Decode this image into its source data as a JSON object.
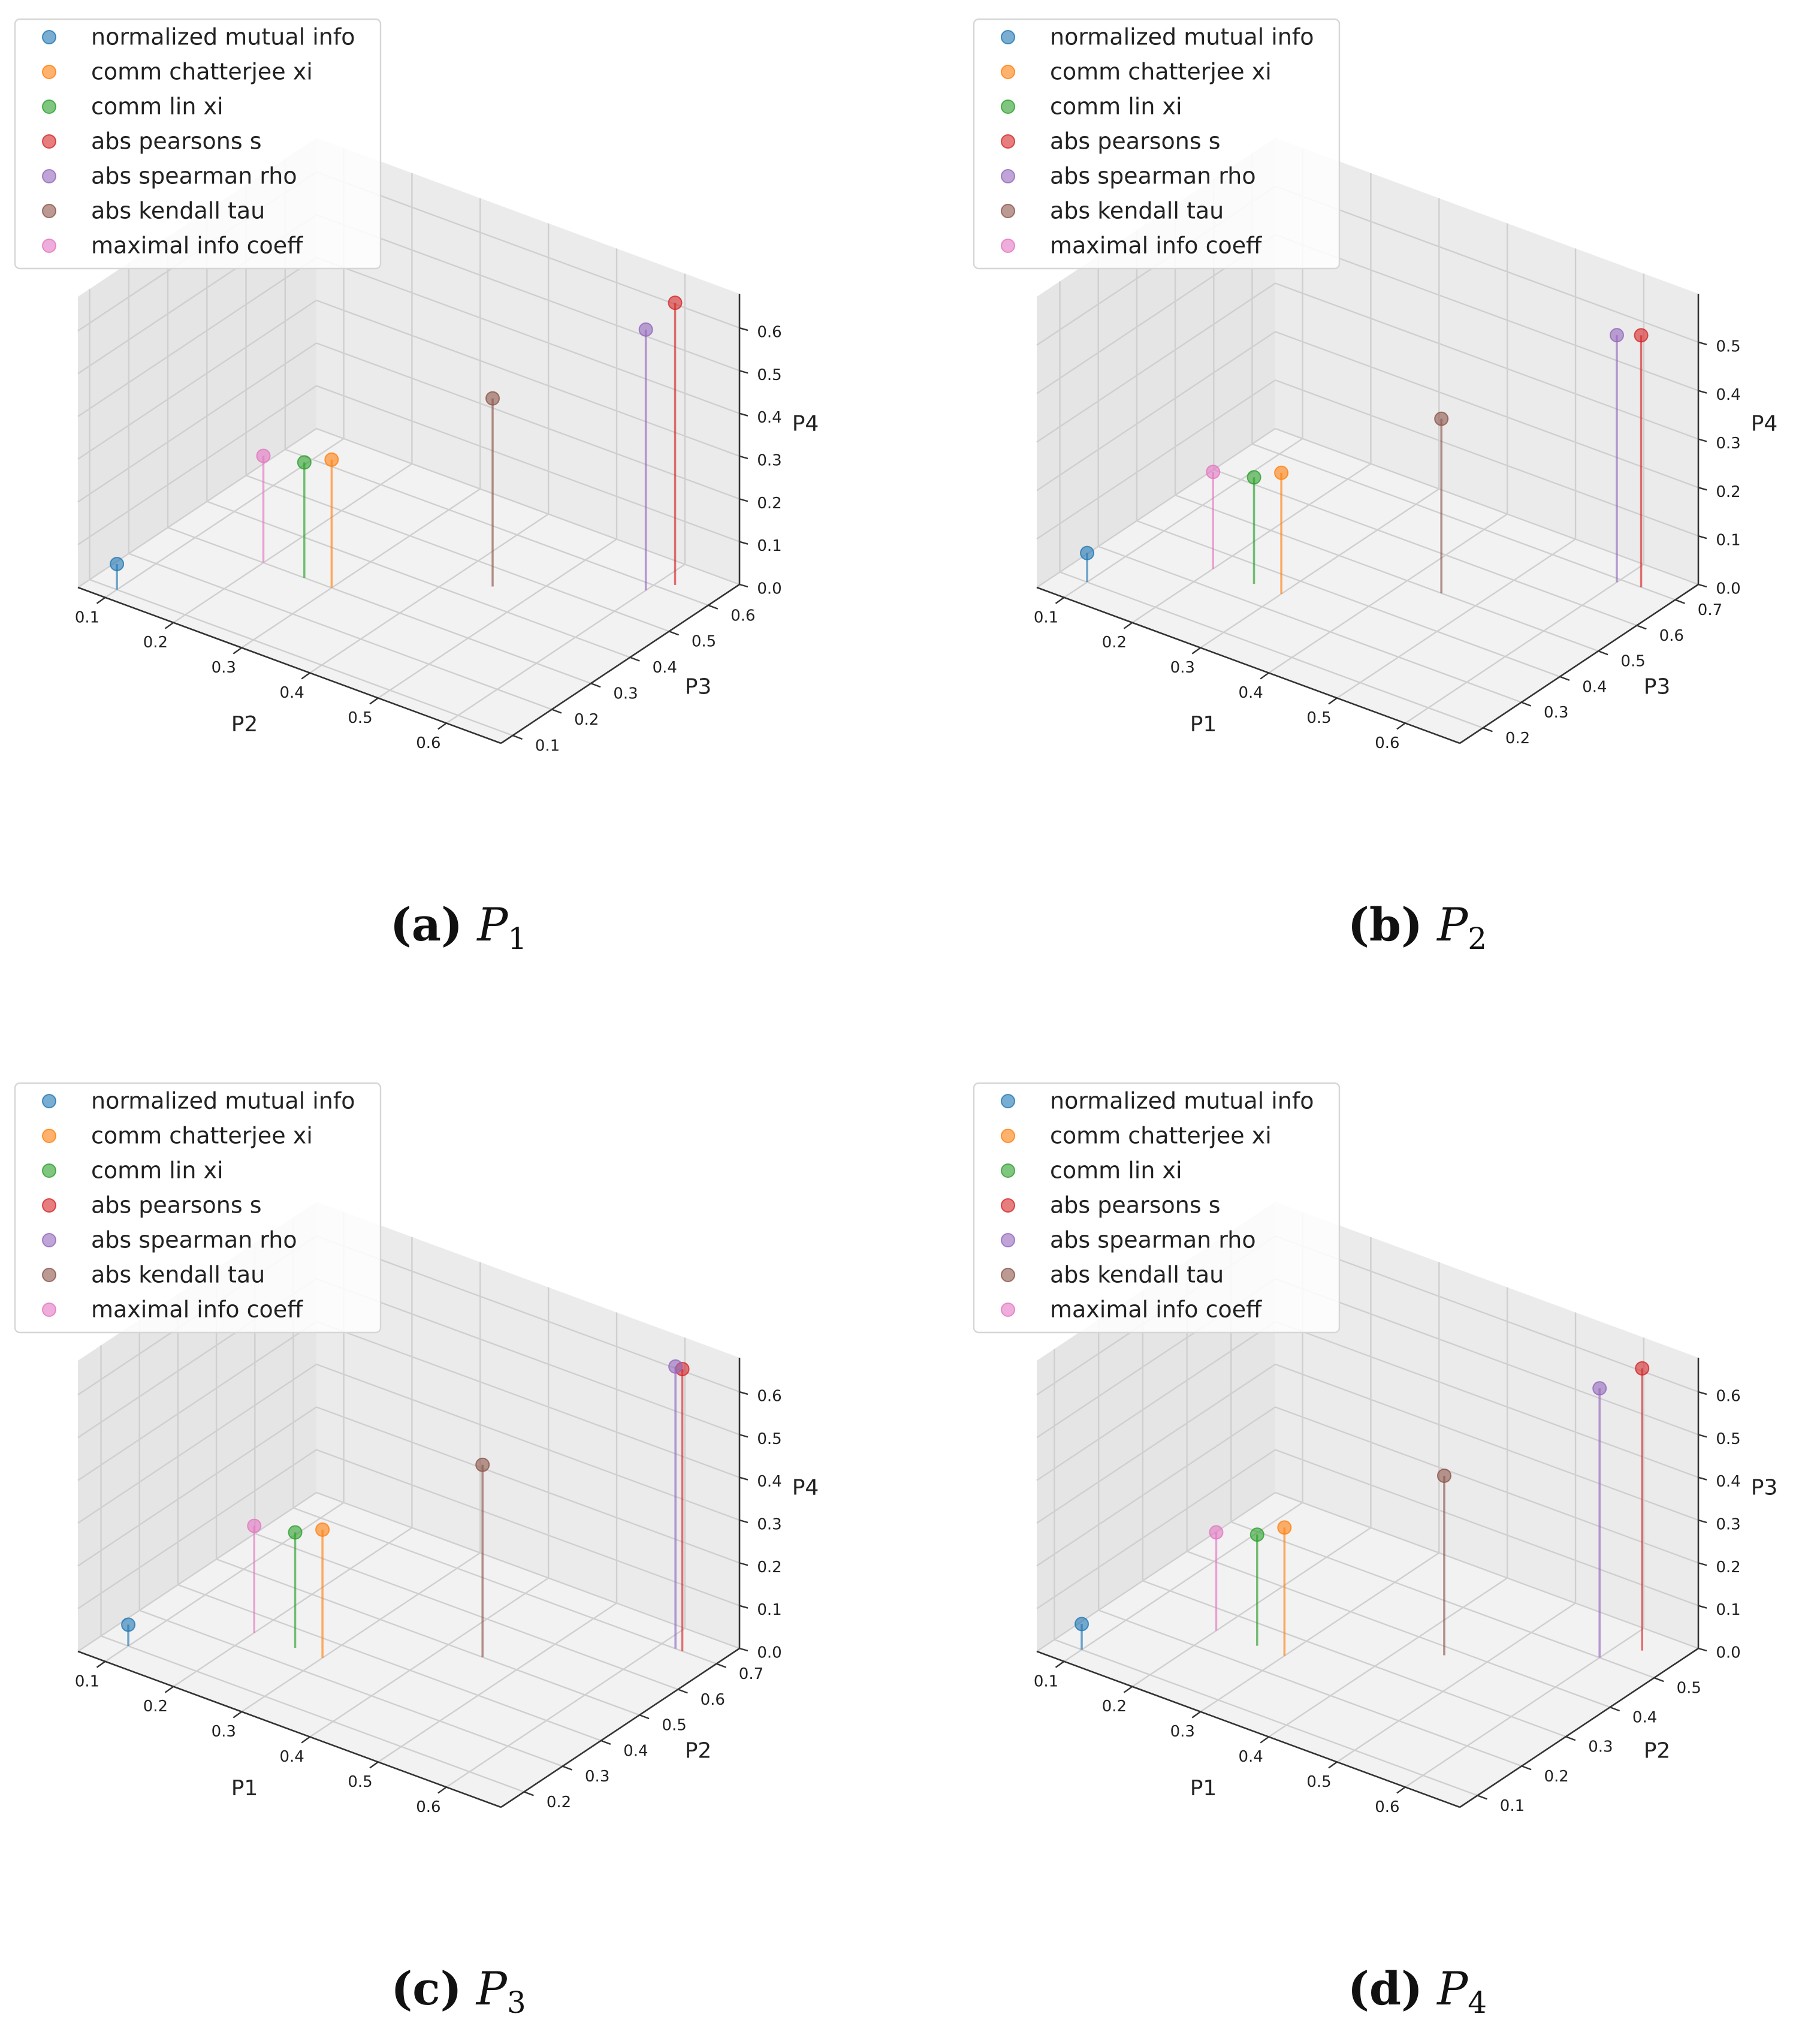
{
  "legend_labels": [
    "normalized mutual info",
    "comm chatterjee xi",
    "comm lin xi",
    "abs pearsons s",
    "abs spearman rho",
    "abs kendall tau",
    "maximal info coeff"
  ],
  "series_colors": [
    "#1f77b4",
    "#ff7f0e",
    "#2ca02c",
    "#d62728",
    "#9467bd",
    "#8c564b",
    "#e377c2"
  ],
  "chart_data": [
    {
      "type": "scatter",
      "subtitle_label": "(a)",
      "subtitle_var": "P",
      "subtitle_sub": "1",
      "xlabel": "P2",
      "ylabel": "P3",
      "zlabel": "P4",
      "xticks": [
        "0.1",
        "0.2",
        "0.3",
        "0.4",
        "0.5",
        "0.6"
      ],
      "yticks": [
        "0.1",
        "0.2",
        "0.3",
        "0.4",
        "0.5",
        "0.6"
      ],
      "zticks": [
        "0.0",
        "0.1",
        "0.2",
        "0.3",
        "0.4",
        "0.5",
        "0.6"
      ],
      "xlim": [
        0.06,
        0.68
      ],
      "ylim": [
        0.07,
        0.68
      ],
      "zlim": [
        0,
        0.68
      ],
      "legend_position": "upper-left",
      "series": [
        {
          "name": "normalized mutual info",
          "x": 0.1,
          "y": 0.1,
          "z": 0.06
        },
        {
          "name": "comm chatterjee xi",
          "x": 0.3,
          "y": 0.3,
          "z": 0.3
        },
        {
          "name": "comm lin xi",
          "x": 0.26,
          "y": 0.3,
          "z": 0.27
        },
        {
          "name": "abs pearsons s",
          "x": 0.62,
          "y": 0.62,
          "z": 0.66
        },
        {
          "name": "abs spearman rho",
          "x": 0.6,
          "y": 0.58,
          "z": 0.61
        },
        {
          "name": "abs kendall tau",
          "x": 0.45,
          "y": 0.45,
          "z": 0.44
        },
        {
          "name": "maximal info coeff",
          "x": 0.2,
          "y": 0.3,
          "z": 0.25
        }
      ]
    },
    {
      "type": "scatter",
      "subtitle_label": "(b)",
      "subtitle_var": "P",
      "subtitle_sub": "2",
      "xlabel": "P1",
      "ylabel": "P3",
      "zlabel": "P4",
      "xticks": [
        "0.1",
        "0.2",
        "0.3",
        "0.4",
        "0.5",
        "0.6"
      ],
      "yticks": [
        "0.2",
        "0.3",
        "0.4",
        "0.5",
        "0.6",
        "0.7"
      ],
      "zticks": [
        "0.0",
        "0.1",
        "0.2",
        "0.3",
        "0.4",
        "0.5"
      ],
      "xlim": [
        0.06,
        0.68
      ],
      "ylim": [
        0.14,
        0.76
      ],
      "zlim": [
        0,
        0.6
      ],
      "legend_position": "upper-left",
      "series": [
        {
          "name": "normalized mutual info",
          "x": 0.1,
          "y": 0.2,
          "z": 0.06
        },
        {
          "name": "comm chatterjee xi",
          "x": 0.3,
          "y": 0.35,
          "z": 0.25
        },
        {
          "name": "comm lin xi",
          "x": 0.26,
          "y": 0.35,
          "z": 0.22
        },
        {
          "name": "abs pearsons s",
          "x": 0.63,
          "y": 0.7,
          "z": 0.52
        },
        {
          "name": "abs spearman rho",
          "x": 0.6,
          "y": 0.69,
          "z": 0.51
        },
        {
          "name": "abs kendall tau",
          "x": 0.45,
          "y": 0.5,
          "z": 0.36
        },
        {
          "name": "maximal info coeff",
          "x": 0.2,
          "y": 0.35,
          "z": 0.2
        }
      ]
    },
    {
      "type": "scatter",
      "subtitle_label": "(c)",
      "subtitle_var": "P",
      "subtitle_sub": "3",
      "xlabel": "P1",
      "ylabel": "P2",
      "zlabel": "P4",
      "xticks": [
        "0.1",
        "0.2",
        "0.3",
        "0.4",
        "0.5",
        "0.6"
      ],
      "yticks": [
        "0.2",
        "0.3",
        "0.4",
        "0.5",
        "0.6",
        "0.7"
      ],
      "zticks": [
        "0.0",
        "0.1",
        "0.2",
        "0.3",
        "0.4",
        "0.5",
        "0.6"
      ],
      "xlim": [
        0.06,
        0.68
      ],
      "ylim": [
        0.14,
        0.76
      ],
      "zlim": [
        0,
        0.68
      ],
      "legend_position": "upper-left",
      "series": [
        {
          "name": "normalized mutual info",
          "x": 0.1,
          "y": 0.2,
          "z": 0.05
        },
        {
          "name": "comm chatterjee xi",
          "x": 0.3,
          "y": 0.35,
          "z": 0.3
        },
        {
          "name": "comm lin xi",
          "x": 0.26,
          "y": 0.35,
          "z": 0.27
        },
        {
          "name": "abs pearsons s",
          "x": 0.63,
          "y": 0.7,
          "z": 0.66
        },
        {
          "name": "abs spearman rho",
          "x": 0.62,
          "y": 0.7,
          "z": 0.66
        },
        {
          "name": "abs kendall tau",
          "x": 0.45,
          "y": 0.5,
          "z": 0.45
        },
        {
          "name": "maximal info coeff",
          "x": 0.2,
          "y": 0.35,
          "z": 0.25
        }
      ]
    },
    {
      "type": "scatter",
      "subtitle_label": "(d)",
      "subtitle_var": "P",
      "subtitle_sub": "4",
      "xlabel": "P1",
      "ylabel": "P2",
      "zlabel": "P3",
      "xticks": [
        "0.1",
        "0.2",
        "0.3",
        "0.4",
        "0.5",
        "0.6"
      ],
      "yticks": [
        "0.1",
        "0.2",
        "0.3",
        "0.4",
        "0.5"
      ],
      "zticks": [
        "0.0",
        "0.1",
        "0.2",
        "0.3",
        "0.4",
        "0.5",
        "0.6"
      ],
      "xlim": [
        0.06,
        0.68
      ],
      "ylim": [
        0.06,
        0.6
      ],
      "zlim": [
        0,
        0.68
      ],
      "legend_position": "upper-left",
      "series": [
        {
          "name": "normalized mutual info",
          "x": 0.1,
          "y": 0.1,
          "z": 0.06
        },
        {
          "name": "comm chatterjee xi",
          "x": 0.3,
          "y": 0.25,
          "z": 0.3
        },
        {
          "name": "comm lin xi",
          "x": 0.26,
          "y": 0.25,
          "z": 0.26
        },
        {
          "name": "abs pearsons s",
          "x": 0.63,
          "y": 0.55,
          "z": 0.66
        },
        {
          "name": "abs spearman rho",
          "x": 0.6,
          "y": 0.5,
          "z": 0.63
        },
        {
          "name": "abs kendall tau",
          "x": 0.45,
          "y": 0.38,
          "z": 0.42
        },
        {
          "name": "maximal info coeff",
          "x": 0.2,
          "y": 0.25,
          "z": 0.23
        }
      ]
    }
  ]
}
